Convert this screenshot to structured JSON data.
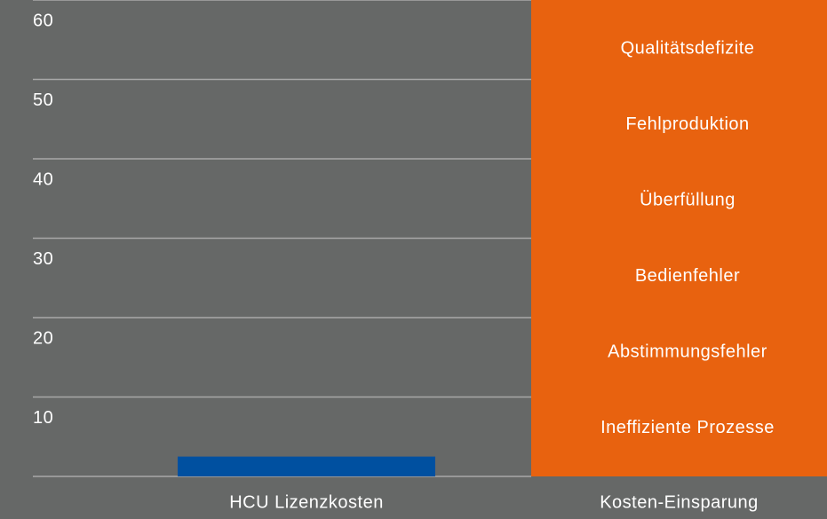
{
  "chart_data": {
    "type": "bar",
    "categories": [
      "HCU Lizenzkosten",
      "Kosten-Einsparung"
    ],
    "values": [
      2.5,
      60
    ],
    "colors": [
      "#0050a0",
      "#e8620f"
    ],
    "ylim": [
      0,
      60
    ],
    "yticks": [
      10,
      20,
      30,
      40,
      50,
      60
    ],
    "grid": true,
    "annotations": [
      "Qualitätsdefizite",
      "Fehlproduktion",
      "Überfüllung",
      "Bedienfehler",
      "Abstimmungsfehler",
      "Ineffiziente Prozesse"
    ]
  }
}
